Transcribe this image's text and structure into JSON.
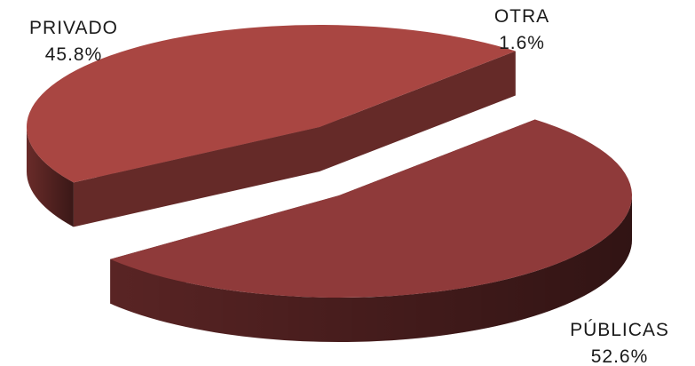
{
  "chart_data": {
    "type": "pie",
    "style": "3d-exploded",
    "slices": [
      {
        "label": "PÚBLICAS",
        "value": 52.6,
        "value_label": "52.6%",
        "color": "#8f3a3a"
      },
      {
        "label": "OTRA",
        "value": 1.6,
        "value_label": "1.6%",
        "color": "#e3b3b8"
      },
      {
        "label": "PRIVADO",
        "value": 45.8,
        "value_label": "45.8%",
        "color": "#a94642"
      }
    ]
  }
}
